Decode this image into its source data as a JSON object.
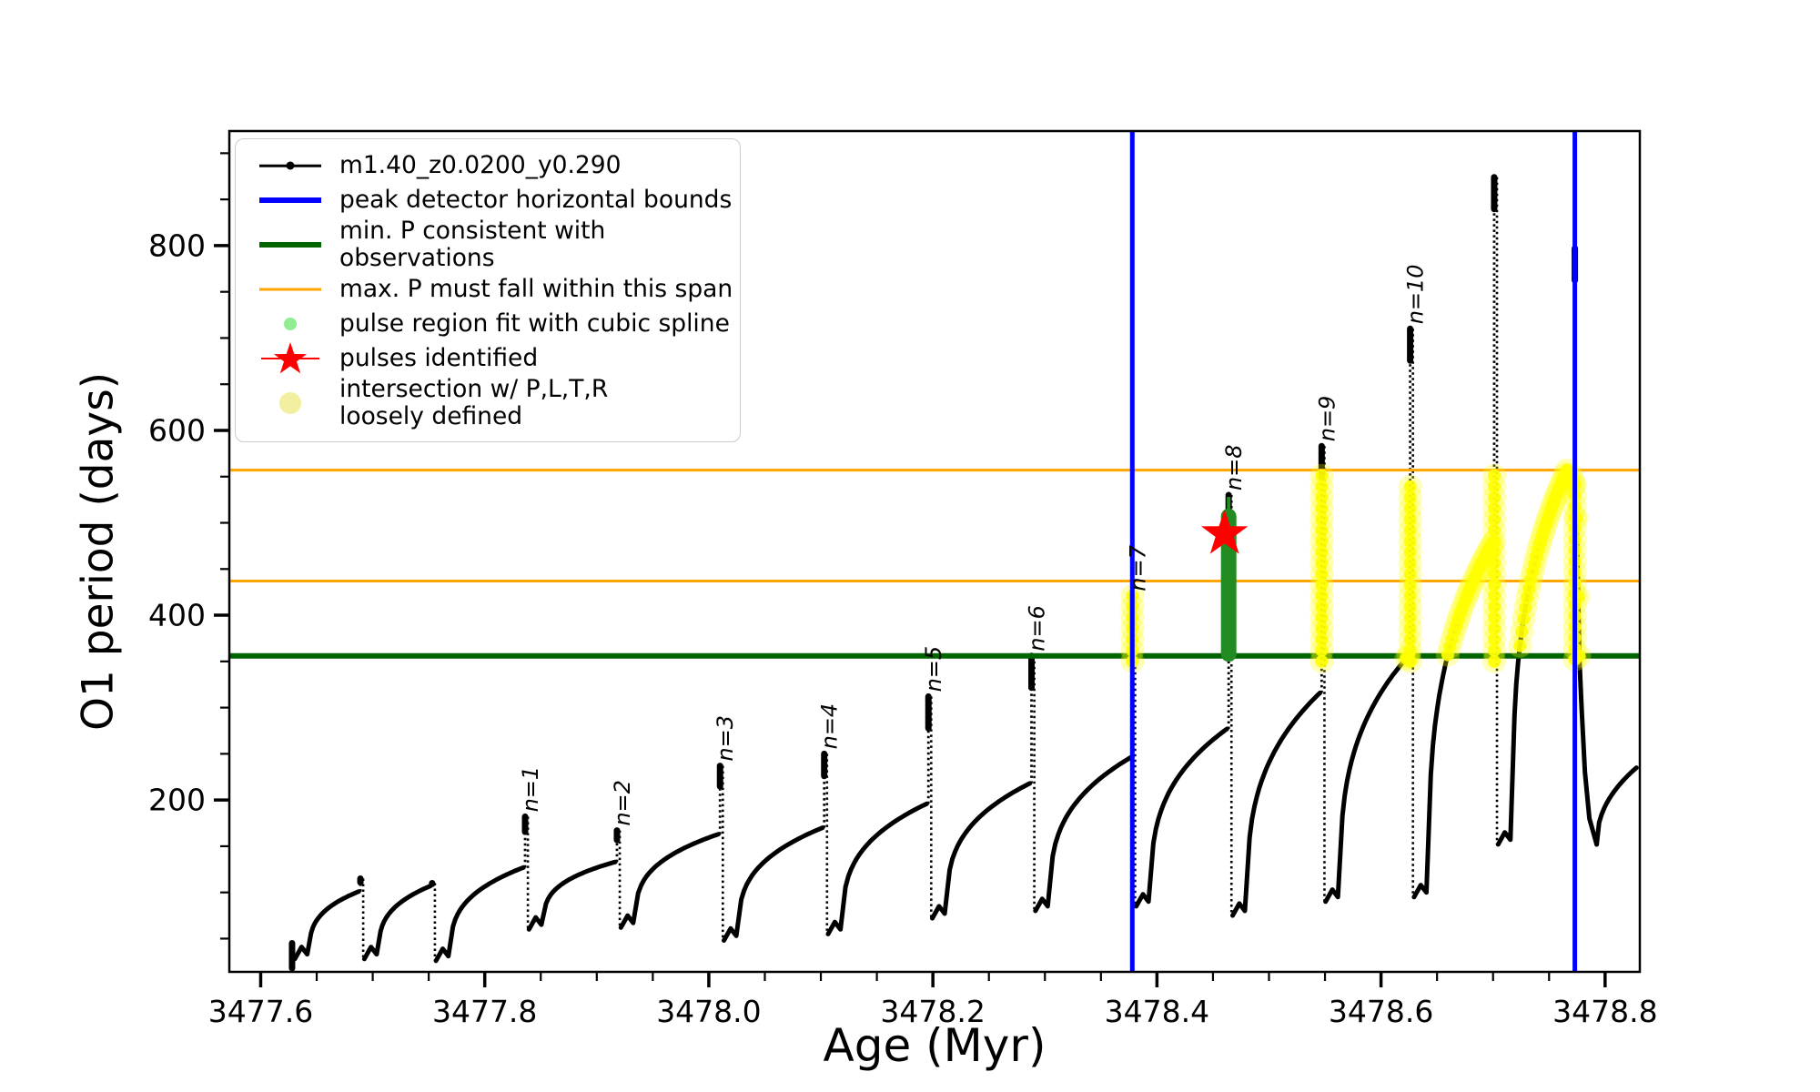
{
  "figure": {
    "background": "#ffffff"
  },
  "axis_labels": {
    "x": "Age (Myr)",
    "y": "O1 period (days)"
  },
  "legend": {
    "items": [
      {
        "marker": "line-dot",
        "color": "#000000",
        "label": "m1.40_z0.0200_y0.290"
      },
      {
        "marker": "line-thick",
        "color": "#0000ff",
        "label": "peak detector horizontal bounds"
      },
      {
        "marker": "line-thick",
        "color": "#006400",
        "label": "min. P consistent with observations"
      },
      {
        "marker": "line-thin",
        "color": "#ffa500",
        "label": "max. P must fall within this span"
      },
      {
        "marker": "dot",
        "color": "#90ee90",
        "label": "pulse region fit with cubic spline"
      },
      {
        "marker": "star",
        "color": "#ff0000",
        "label": "pulses identified"
      },
      {
        "marker": "dot-big",
        "color": "#f3efa0",
        "label": "intersection w/ P,L,T,R\nloosely defined"
      }
    ]
  },
  "chart_data": {
    "type": "line",
    "title": "",
    "xlabel": "Age (Myr)",
    "ylabel": "O1 period (days)",
    "xlim": [
      3477.572,
      3478.831
    ],
    "ylim": [
      14,
      924
    ],
    "x_tick_values": [
      3477.6,
      3477.8,
      3478.0,
      3478.2,
      3478.4,
      3478.6,
      3478.8
    ],
    "x_tick_labels": [
      "3477.6",
      "3477.8",
      "3478.0",
      "3478.2",
      "3478.4",
      "3478.6",
      "3478.8"
    ],
    "x_minor_step": 0.05,
    "y_tick_values": [
      200,
      400,
      600,
      800
    ],
    "y_tick_labels": [
      "200",
      "400",
      "600",
      "800"
    ],
    "y_minor_step": 50,
    "series": [
      {
        "name": "m1.40_z0.0200_y0.290",
        "color": "#000000"
      }
    ],
    "hlines": [
      {
        "name": "max-P-span-upper",
        "y": 557,
        "color": "#ffa500",
        "lw": 3
      },
      {
        "name": "max-P-span-lower",
        "y": 437,
        "color": "#ffa500",
        "lw": 3
      },
      {
        "name": "min-P-observed",
        "y": 356,
        "color": "#006400",
        "lw": 6
      }
    ],
    "vlines": [
      {
        "name": "peak-detector-left-bound",
        "x": 3478.378,
        "color": "#0000ff",
        "lw": 5
      },
      {
        "name": "peak-detector-right-bound",
        "x": 3478.773,
        "color": "#0000ff",
        "lw": 5
      }
    ],
    "pulses_identified": [
      {
        "x": 3478.462,
        "y": 488
      }
    ],
    "pulse_region": {
      "x": 3478.464,
      "y_from": 358,
      "y_to": 507,
      "tip_to": 528,
      "color": "#228B22"
    },
    "intersection_color": "#ffff00",
    "yellow_threshold": 352,
    "start_blob": {
      "x": 3477.628,
      "y_from": 18,
      "y_to": 45
    },
    "cycles": [
      {
        "spike_x": 3477.689,
        "arc_peak": 101,
        "spike_top": 115,
        "min_after": 28,
        "label": null
      },
      {
        "spike_x": 3477.753,
        "arc_peak": 107,
        "spike_top": 110,
        "min_after": 26,
        "label": null
      },
      {
        "spike_x": 3477.836,
        "arc_peak": 127,
        "spike_top": 182,
        "min_after": 60,
        "label": "n=1"
      },
      {
        "spike_x": 3477.918,
        "arc_peak": 133,
        "spike_top": 167,
        "min_after": 62,
        "label": "n=2"
      },
      {
        "spike_x": 3478.01,
        "arc_peak": 163,
        "spike_top": 237,
        "min_after": 48,
        "label": "n=3"
      },
      {
        "spike_x": 3478.103,
        "arc_peak": 170,
        "spike_top": 250,
        "min_after": 55,
        "label": "n=4"
      },
      {
        "spike_x": 3478.196,
        "arc_peak": 196,
        "spike_top": 312,
        "min_after": 72,
        "label": "n=5"
      },
      {
        "spike_x": 3478.288,
        "arc_peak": 218,
        "spike_top": 356,
        "min_after": 80,
        "label": "n=6"
      },
      {
        "spike_x": 3478.378,
        "arc_peak": 246,
        "spike_top": 421,
        "min_after": 85,
        "label": "n=7",
        "yellow": [
          350,
          421
        ]
      },
      {
        "spike_x": 3478.464,
        "arc_peak": 277,
        "spike_top": 530,
        "min_after": 75,
        "label": "n=8",
        "green_region": true
      },
      {
        "spike_x": 3478.547,
        "arc_peak": 316,
        "spike_top": 583,
        "min_after": 90,
        "label": "n=9",
        "yellow": [
          350,
          557
        ]
      },
      {
        "spike_x": 3478.626,
        "arc_peak": 356,
        "spike_top": 710,
        "min_after": 95,
        "label": "n=10",
        "yellow": [
          350,
          545
        ]
      },
      {
        "spike_x": 3478.701,
        "arc_peak": 478,
        "spike_top": 874,
        "min_after": 152,
        "label": null,
        "yellow": [
          350,
          557
        ]
      },
      {
        "spike_x": 3478.773,
        "arc_peak": 557,
        "spike_top": 797,
        "min_after": 152,
        "label": null,
        "yellow": [
          352,
          545
        ],
        "peak_dx": 0.007,
        "spike_base": 540,
        "pre_spike_path": [
          [
            -0.004,
            552
          ],
          [
            -0.002,
            547
          ],
          [
            -0.0008,
            541
          ]
        ],
        "post_path": [
          [
            0.0015,
            505
          ],
          [
            0.003,
            420
          ],
          [
            0.004,
            356
          ],
          [
            0.006,
            300
          ],
          [
            0.009,
            230
          ],
          [
            0.013,
            180
          ],
          [
            0.0195,
            152
          ]
        ]
      }
    ],
    "tail": {
      "x": 3478.828,
      "y": 235
    }
  }
}
